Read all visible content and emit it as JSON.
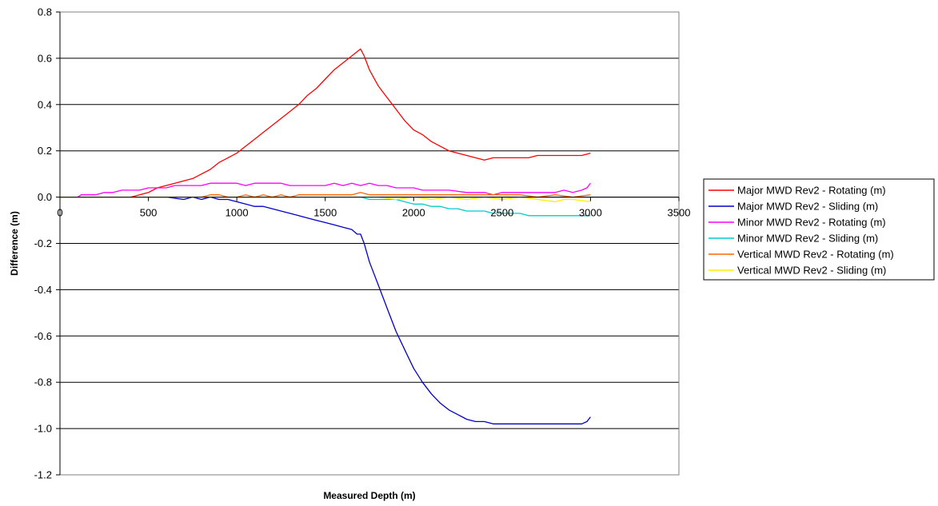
{
  "chart_data": {
    "type": "line",
    "xlabel": "Measured Depth (m)",
    "ylabel": "Difference (m)",
    "xlim": [
      0,
      3500
    ],
    "ylim": [
      -1.2,
      0.8
    ],
    "x_ticks": [
      0,
      500,
      1000,
      1500,
      2000,
      2500,
      3000,
      3500
    ],
    "x_tick_labels": [
      "0",
      "500",
      "1000",
      "1500",
      "2000",
      "2500",
      "3000",
      "3500"
    ],
    "y_ticks": [
      0.8,
      0.6,
      0.4,
      0.2,
      0.0,
      -0.2,
      -0.4,
      -0.6,
      -0.8,
      -1.0,
      -1.2
    ],
    "y_tick_labels": [
      "0.8",
      "0.6",
      "0.4",
      "0.2",
      "0.0",
      "-0.2",
      "-0.4",
      "-0.6",
      "-0.8",
      "-1.0",
      "-1.2"
    ],
    "grid": "horizontal",
    "legend_position": "right",
    "series": [
      {
        "name": "Major MWD Rev2 - Rotating (m)",
        "color": "#ff0000",
        "points": [
          [
            0,
            0
          ],
          [
            100,
            0
          ],
          [
            200,
            0
          ],
          [
            300,
            0
          ],
          [
            400,
            0
          ],
          [
            450,
            0.01
          ],
          [
            500,
            0.02
          ],
          [
            550,
            0.04
          ],
          [
            600,
            0.05
          ],
          [
            650,
            0.06
          ],
          [
            700,
            0.07
          ],
          [
            750,
            0.08
          ],
          [
            800,
            0.1
          ],
          [
            850,
            0.12
          ],
          [
            900,
            0.15
          ],
          [
            950,
            0.17
          ],
          [
            1000,
            0.19
          ],
          [
            1050,
            0.22
          ],
          [
            1100,
            0.25
          ],
          [
            1150,
            0.28
          ],
          [
            1200,
            0.31
          ],
          [
            1250,
            0.34
          ],
          [
            1300,
            0.37
          ],
          [
            1350,
            0.4
          ],
          [
            1400,
            0.44
          ],
          [
            1450,
            0.47
          ],
          [
            1500,
            0.51
          ],
          [
            1550,
            0.55
          ],
          [
            1600,
            0.58
          ],
          [
            1650,
            0.61
          ],
          [
            1700,
            0.64
          ],
          [
            1720,
            0.61
          ],
          [
            1750,
            0.55
          ],
          [
            1800,
            0.48
          ],
          [
            1850,
            0.43
          ],
          [
            1900,
            0.38
          ],
          [
            1950,
            0.33
          ],
          [
            2000,
            0.29
          ],
          [
            2050,
            0.27
          ],
          [
            2100,
            0.24
          ],
          [
            2150,
            0.22
          ],
          [
            2200,
            0.2
          ],
          [
            2250,
            0.19
          ],
          [
            2300,
            0.18
          ],
          [
            2350,
            0.17
          ],
          [
            2400,
            0.16
          ],
          [
            2450,
            0.17
          ],
          [
            2500,
            0.17
          ],
          [
            2550,
            0.17
          ],
          [
            2600,
            0.17
          ],
          [
            2650,
            0.17
          ],
          [
            2700,
            0.18
          ],
          [
            2750,
            0.18
          ],
          [
            2800,
            0.18
          ],
          [
            2850,
            0.18
          ],
          [
            2900,
            0.18
          ],
          [
            2950,
            0.18
          ],
          [
            3000,
            0.19
          ]
        ]
      },
      {
        "name": "Major MWD Rev2 - Sliding (m)",
        "color": "#0000cc",
        "points": [
          [
            0,
            0
          ],
          [
            100,
            0
          ],
          [
            200,
            0
          ],
          [
            300,
            0
          ],
          [
            400,
            0
          ],
          [
            500,
            0
          ],
          [
            600,
            0
          ],
          [
            700,
            -0.01
          ],
          [
            750,
            0
          ],
          [
            800,
            -0.01
          ],
          [
            850,
            0
          ],
          [
            900,
            -0.01
          ],
          [
            950,
            -0.01
          ],
          [
            1000,
            -0.02
          ],
          [
            1050,
            -0.03
          ],
          [
            1100,
            -0.04
          ],
          [
            1150,
            -0.04
          ],
          [
            1200,
            -0.05
          ],
          [
            1250,
            -0.06
          ],
          [
            1300,
            -0.07
          ],
          [
            1350,
            -0.08
          ],
          [
            1400,
            -0.09
          ],
          [
            1450,
            -0.1
          ],
          [
            1500,
            -0.11
          ],
          [
            1550,
            -0.12
          ],
          [
            1600,
            -0.13
          ],
          [
            1650,
            -0.14
          ],
          [
            1680,
            -0.16
          ],
          [
            1700,
            -0.16
          ],
          [
            1720,
            -0.2
          ],
          [
            1750,
            -0.28
          ],
          [
            1800,
            -0.38
          ],
          [
            1850,
            -0.48
          ],
          [
            1900,
            -0.58
          ],
          [
            1950,
            -0.66
          ],
          [
            2000,
            -0.74
          ],
          [
            2050,
            -0.8
          ],
          [
            2100,
            -0.85
          ],
          [
            2150,
            -0.89
          ],
          [
            2200,
            -0.92
          ],
          [
            2250,
            -0.94
          ],
          [
            2300,
            -0.96
          ],
          [
            2350,
            -0.97
          ],
          [
            2400,
            -0.97
          ],
          [
            2450,
            -0.98
          ],
          [
            2500,
            -0.98
          ],
          [
            2600,
            -0.98
          ],
          [
            2700,
            -0.98
          ],
          [
            2800,
            -0.98
          ],
          [
            2900,
            -0.98
          ],
          [
            2950,
            -0.98
          ],
          [
            2980,
            -0.97
          ],
          [
            3000,
            -0.95
          ]
        ]
      },
      {
        "name": "Minor MWD Rev2 - Rotating (m)",
        "color": "#ff00ff",
        "points": [
          [
            0,
            0
          ],
          [
            100,
            0
          ],
          [
            120,
            0.01
          ],
          [
            200,
            0.01
          ],
          [
            250,
            0.02
          ],
          [
            300,
            0.02
          ],
          [
            350,
            0.03
          ],
          [
            400,
            0.03
          ],
          [
            450,
            0.03
          ],
          [
            500,
            0.04
          ],
          [
            550,
            0.04
          ],
          [
            600,
            0.04
          ],
          [
            650,
            0.05
          ],
          [
            700,
            0.05
          ],
          [
            750,
            0.05
          ],
          [
            800,
            0.05
          ],
          [
            850,
            0.06
          ],
          [
            900,
            0.06
          ],
          [
            950,
            0.06
          ],
          [
            1000,
            0.06
          ],
          [
            1050,
            0.05
          ],
          [
            1100,
            0.06
          ],
          [
            1150,
            0.06
          ],
          [
            1200,
            0.06
          ],
          [
            1250,
            0.06
          ],
          [
            1300,
            0.05
          ],
          [
            1350,
            0.05
          ],
          [
            1400,
            0.05
          ],
          [
            1450,
            0.05
          ],
          [
            1500,
            0.05
          ],
          [
            1550,
            0.06
          ],
          [
            1600,
            0.05
          ],
          [
            1650,
            0.06
          ],
          [
            1700,
            0.05
          ],
          [
            1750,
            0.06
          ],
          [
            1800,
            0.05
          ],
          [
            1850,
            0.05
          ],
          [
            1900,
            0.04
          ],
          [
            1950,
            0.04
          ],
          [
            2000,
            0.04
          ],
          [
            2050,
            0.03
          ],
          [
            2100,
            0.03
          ],
          [
            2200,
            0.03
          ],
          [
            2300,
            0.02
          ],
          [
            2400,
            0.02
          ],
          [
            2450,
            0.01
          ],
          [
            2500,
            0.02
          ],
          [
            2600,
            0.02
          ],
          [
            2700,
            0.02
          ],
          [
            2800,
            0.02
          ],
          [
            2850,
            0.03
          ],
          [
            2900,
            0.02
          ],
          [
            2950,
            0.03
          ],
          [
            2980,
            0.04
          ],
          [
            3000,
            0.06
          ]
        ]
      },
      {
        "name": "Minor MWD Rev2 - Sliding (m)",
        "color": "#00cccc",
        "points": [
          [
            0,
            0
          ],
          [
            500,
            0
          ],
          [
            1000,
            0
          ],
          [
            1200,
            0
          ],
          [
            1400,
            0
          ],
          [
            1600,
            0
          ],
          [
            1700,
            0
          ],
          [
            1750,
            -0.01
          ],
          [
            1800,
            -0.01
          ],
          [
            1850,
            -0.01
          ],
          [
            1900,
            -0.01
          ],
          [
            1950,
            -0.02
          ],
          [
            2000,
            -0.03
          ],
          [
            2050,
            -0.03
          ],
          [
            2100,
            -0.04
          ],
          [
            2150,
            -0.04
          ],
          [
            2200,
            -0.05
          ],
          [
            2250,
            -0.05
          ],
          [
            2300,
            -0.06
          ],
          [
            2350,
            -0.06
          ],
          [
            2400,
            -0.06
          ],
          [
            2450,
            -0.07
          ],
          [
            2500,
            -0.07
          ],
          [
            2550,
            -0.07
          ],
          [
            2600,
            -0.07
          ],
          [
            2650,
            -0.08
          ],
          [
            2700,
            -0.08
          ],
          [
            2800,
            -0.08
          ],
          [
            2900,
            -0.08
          ],
          [
            3000,
            -0.08
          ]
        ]
      },
      {
        "name": "Vertical MWD Rev2 - Rotating (m)",
        "color": "#ff6600",
        "points": [
          [
            0,
            0
          ],
          [
            500,
            0
          ],
          [
            800,
            0
          ],
          [
            850,
            0.01
          ],
          [
            900,
            0.01
          ],
          [
            950,
            0
          ],
          [
            1000,
            0
          ],
          [
            1050,
            0.01
          ],
          [
            1100,
            0
          ],
          [
            1150,
            0.01
          ],
          [
            1200,
            0
          ],
          [
            1250,
            0.01
          ],
          [
            1300,
            0
          ],
          [
            1350,
            0.01
          ],
          [
            1400,
            0.01
          ],
          [
            1450,
            0.01
          ],
          [
            1500,
            0.01
          ],
          [
            1550,
            0.01
          ],
          [
            1600,
            0.01
          ],
          [
            1650,
            0.01
          ],
          [
            1700,
            0.02
          ],
          [
            1750,
            0.01
          ],
          [
            1800,
            0.01
          ],
          [
            1850,
            0.01
          ],
          [
            1900,
            0.01
          ],
          [
            2000,
            0.01
          ],
          [
            2100,
            0.01
          ],
          [
            2200,
            0.01
          ],
          [
            2300,
            0.01
          ],
          [
            2400,
            0.01
          ],
          [
            2500,
            0.01
          ],
          [
            2600,
            0.01
          ],
          [
            2700,
            0
          ],
          [
            2800,
            0.01
          ],
          [
            2900,
            0
          ],
          [
            3000,
            0.01
          ]
        ]
      },
      {
        "name": "Vertical MWD Rev2 - Sliding (m)",
        "color": "#ffee00",
        "points": [
          [
            0,
            0
          ],
          [
            500,
            0
          ],
          [
            1000,
            0
          ],
          [
            1500,
            0
          ],
          [
            1800,
            0
          ],
          [
            1900,
            -0.01
          ],
          [
            2000,
            0
          ],
          [
            2100,
            -0.01
          ],
          [
            2200,
            0
          ],
          [
            2300,
            -0.01
          ],
          [
            2400,
            0
          ],
          [
            2500,
            -0.01
          ],
          [
            2600,
            0
          ],
          [
            2700,
            -0.01
          ],
          [
            2800,
            -0.02
          ],
          [
            2850,
            -0.01
          ],
          [
            2900,
            -0.01
          ],
          [
            3000,
            -0.02
          ]
        ]
      }
    ]
  }
}
